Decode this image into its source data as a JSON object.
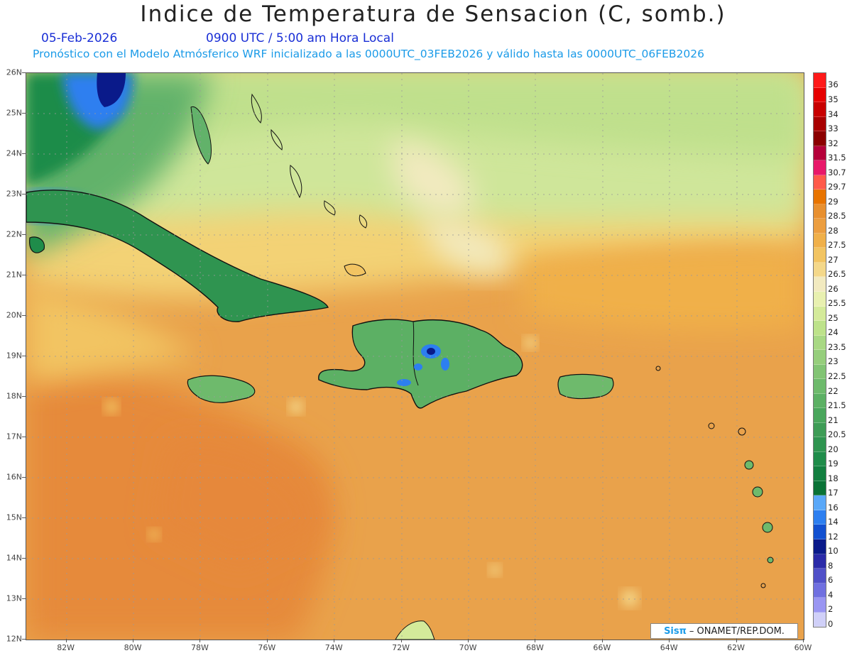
{
  "title": "Indice de Temperatura de Sensacion (C, somb.)",
  "date": "05-Feb-2026",
  "time": "0900 UTC / 5:00 am Hora Local",
  "model_info": "Pronóstico con el Modelo Atmósferico WRF inicializado a las 0000UTC_03FEB2026 y válido hasta las  0000UTC_06FEB2026",
  "credit": {
    "brand": "Sisπ",
    "text": "– ONAMET/REP.DOM."
  },
  "map": {
    "lat_range": [
      12,
      26
    ],
    "lon_range": [
      -83.2,
      -60
    ],
    "lat_labels": [
      "26N",
      "25N",
      "24N",
      "23N",
      "22N",
      "21N",
      "20N",
      "19N",
      "18N",
      "17N",
      "16N",
      "15N",
      "14N",
      "13N",
      "12N"
    ],
    "lat_values": [
      26,
      25,
      24,
      23,
      22,
      21,
      20,
      19,
      18,
      17,
      16,
      15,
      14,
      13,
      12
    ],
    "lon_labels": [
      "82W",
      "80W",
      "78W",
      "76W",
      "74W",
      "72W",
      "70W",
      "68W",
      "66W",
      "64W",
      "62W",
      "60W"
    ],
    "lon_values": [
      -82,
      -80,
      -78,
      -76,
      -74,
      -72,
      -70,
      -68,
      -66,
      -64,
      -62,
      -60
    ]
  },
  "colorbar": {
    "labels": [
      "36",
      "35",
      "34",
      "33",
      "32",
      "31.5",
      "30.7",
      "29.7",
      "29",
      "28.5",
      "28",
      "27.5",
      "27",
      "26.5",
      "26",
      "25.5",
      "25",
      "24",
      "23.5",
      "23",
      "22.5",
      "22",
      "21.5",
      "21",
      "20.5",
      "20",
      "19",
      "18",
      "17",
      "16",
      "14",
      "12",
      "10",
      "8",
      "6",
      "4",
      "2",
      "0"
    ],
    "colors": [
      "#ff1a1a",
      "#e60000",
      "#c80000",
      "#a80000",
      "#8b0000",
      "#b5003a",
      "#e8186a",
      "#ff5a4a",
      "#e87400",
      "#e89030",
      "#ec9e40",
      "#f0b04a",
      "#f2c462",
      "#f4d88a",
      "#f2eac0",
      "#e8f0b0",
      "#d4ea9a",
      "#bde28a",
      "#a8d884",
      "#96ce7c",
      "#82c474",
      "#6eba6c",
      "#5cb064",
      "#4aa65c",
      "#3e9c56",
      "#2f9450",
      "#1f8c4a",
      "#137f40",
      "#0a7236",
      "#5aa8f8",
      "#2d7ff0",
      "#1250d0",
      "#0a1a8a",
      "#2a2aa8",
      "#5050c8",
      "#7070e0",
      "#9a96f2",
      "#d0d0f8"
    ]
  }
}
